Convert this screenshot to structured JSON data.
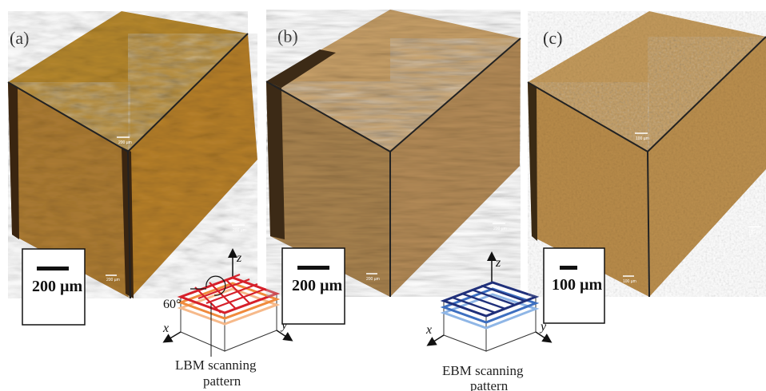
{
  "panels": [
    {
      "label": "(a)",
      "scale_bar": "200 µm",
      "micro_labels": [
        "200 µm",
        "200 µm",
        "200 µm"
      ],
      "top_color": "#b6882e",
      "left_color": "#ad7c33",
      "right_color": "#b7802a",
      "edge_color": "#3a2510"
    },
    {
      "label": "(b)",
      "scale_bar": "200 µm",
      "micro_labels": [
        "200 µm",
        "200 µm"
      ],
      "top_color": "#c9a169",
      "left_color": "#a9834f",
      "right_color": "#b48b57",
      "edge_color": "#3c2a16"
    },
    {
      "label": "(c)",
      "scale_bar": "100 µm",
      "micro_labels": [
        "100 µm",
        "100 µm",
        "100 µm"
      ],
      "top_color": "#c39a5c",
      "left_color": "#b98c4a",
      "right_color": "#bb8f4e",
      "edge_color": "#3a2a14"
    }
  ],
  "lbm_diagram": {
    "angle_label": "60°",
    "x_label": "x⃗",
    "y_label": "y⃗",
    "z_label": "z⃗",
    "caption_line1": "LBM scanning",
    "caption_line2": "pattern",
    "layer_colors": [
      "#d6202a",
      "#f08a3c",
      "#f6b98a"
    ]
  },
  "ebm_diagram": {
    "x_label": "x⃗",
    "y_label": "y⃗",
    "z_label": "z⃗",
    "caption_line1": "EBM scanning",
    "caption_line2": "pattern",
    "layer_colors": [
      "#20307a",
      "#3d6fc0",
      "#8fb6e6"
    ]
  }
}
